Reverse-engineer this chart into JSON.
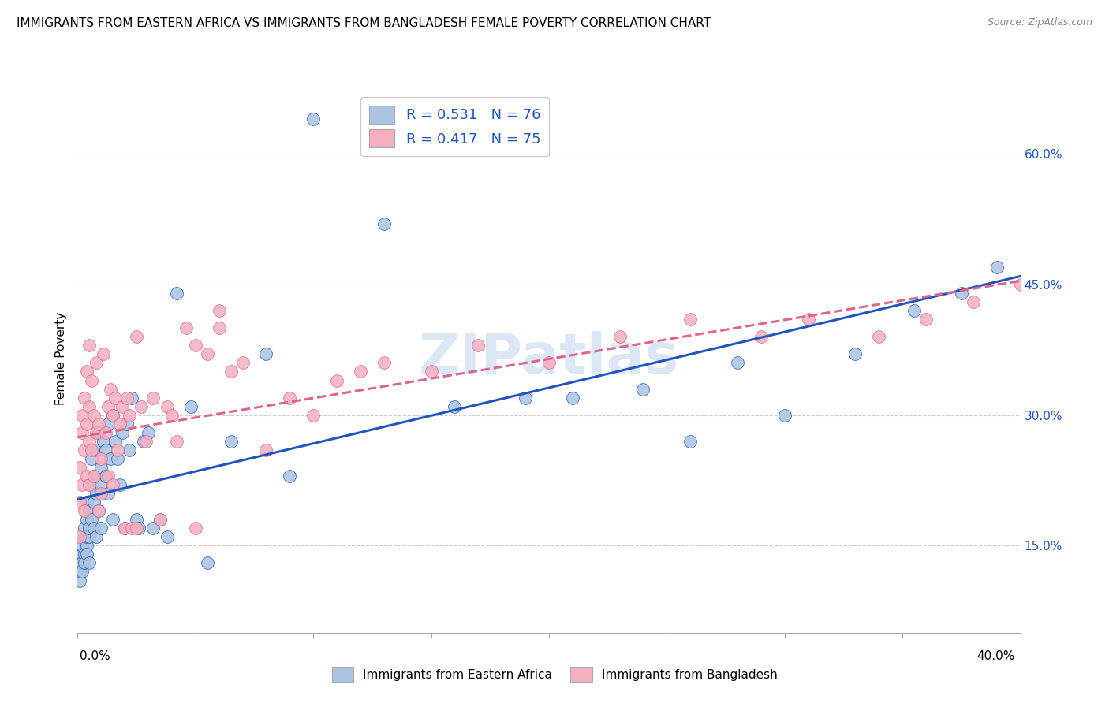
{
  "title": "IMMIGRANTS FROM EASTERN AFRICA VS IMMIGRANTS FROM BANGLADESH FEMALE POVERTY CORRELATION CHART",
  "source": "Source: ZipAtlas.com",
  "ylabel": "Female Poverty",
  "right_yticks": [
    0.15,
    0.3,
    0.45,
    0.6
  ],
  "right_ytick_labels": [
    "15.0%",
    "30.0%",
    "45.0%",
    "60.0%"
  ],
  "xmin": 0.0,
  "xmax": 0.4,
  "ymin": 0.05,
  "ymax": 0.68,
  "r_eastern": 0.531,
  "n_eastern": 76,
  "r_bangladesh": 0.417,
  "n_bangladesh": 75,
  "color_eastern": "#aac4e2",
  "color_bangladesh": "#f5afc0",
  "line_eastern": "#2255bb",
  "line_bangladesh": "#dd6688",
  "watermark": "ZIPatlas",
  "watermark_color": "#c5d8ef",
  "legend_text_color": "#2255bb",
  "ea_x": [
    0.001,
    0.001,
    0.001,
    0.002,
    0.002,
    0.002,
    0.002,
    0.003,
    0.003,
    0.003,
    0.003,
    0.004,
    0.004,
    0.004,
    0.004,
    0.004,
    0.005,
    0.005,
    0.005,
    0.005,
    0.006,
    0.006,
    0.006,
    0.007,
    0.007,
    0.007,
    0.008,
    0.008,
    0.008,
    0.009,
    0.009,
    0.01,
    0.01,
    0.01,
    0.011,
    0.012,
    0.012,
    0.013,
    0.013,
    0.014,
    0.015,
    0.015,
    0.016,
    0.017,
    0.018,
    0.019,
    0.02,
    0.021,
    0.022,
    0.023,
    0.025,
    0.026,
    0.028,
    0.03,
    0.032,
    0.035,
    0.038,
    0.042,
    0.048,
    0.055,
    0.065,
    0.08,
    0.1,
    0.13,
    0.16,
    0.21,
    0.26,
    0.3,
    0.33,
    0.355,
    0.375,
    0.39,
    0.09,
    0.19,
    0.24,
    0.28
  ],
  "ea_y": [
    0.11,
    0.13,
    0.12,
    0.14,
    0.13,
    0.12,
    0.15,
    0.17,
    0.14,
    0.16,
    0.13,
    0.18,
    0.15,
    0.16,
    0.2,
    0.14,
    0.19,
    0.16,
    0.17,
    0.13,
    0.22,
    0.18,
    0.25,
    0.23,
    0.2,
    0.17,
    0.21,
    0.26,
    0.16,
    0.28,
    0.19,
    0.24,
    0.22,
    0.17,
    0.27,
    0.26,
    0.23,
    0.29,
    0.21,
    0.25,
    0.3,
    0.18,
    0.27,
    0.25,
    0.22,
    0.28,
    0.17,
    0.29,
    0.26,
    0.32,
    0.18,
    0.17,
    0.27,
    0.28,
    0.17,
    0.18,
    0.16,
    0.44,
    0.31,
    0.13,
    0.27,
    0.37,
    0.64,
    0.52,
    0.31,
    0.32,
    0.27,
    0.3,
    0.37,
    0.42,
    0.44,
    0.47,
    0.23,
    0.32,
    0.33,
    0.36
  ],
  "bd_x": [
    0.001,
    0.001,
    0.001,
    0.002,
    0.002,
    0.002,
    0.003,
    0.003,
    0.003,
    0.004,
    0.004,
    0.004,
    0.005,
    0.005,
    0.005,
    0.006,
    0.006,
    0.007,
    0.007,
    0.008,
    0.008,
    0.009,
    0.009,
    0.01,
    0.01,
    0.011,
    0.012,
    0.013,
    0.013,
    0.014,
    0.015,
    0.015,
    0.016,
    0.017,
    0.018,
    0.019,
    0.02,
    0.021,
    0.022,
    0.023,
    0.025,
    0.027,
    0.029,
    0.032,
    0.035,
    0.038,
    0.042,
    0.046,
    0.005,
    0.05,
    0.055,
    0.06,
    0.065,
    0.025,
    0.07,
    0.08,
    0.09,
    0.11,
    0.13,
    0.15,
    0.17,
    0.2,
    0.23,
    0.26,
    0.29,
    0.31,
    0.34,
    0.36,
    0.38,
    0.4,
    0.04,
    0.05,
    0.06,
    0.1,
    0.12
  ],
  "bd_y": [
    0.24,
    0.2,
    0.16,
    0.28,
    0.22,
    0.3,
    0.26,
    0.19,
    0.32,
    0.29,
    0.23,
    0.35,
    0.31,
    0.27,
    0.22,
    0.34,
    0.26,
    0.3,
    0.23,
    0.28,
    0.36,
    0.19,
    0.29,
    0.21,
    0.25,
    0.37,
    0.28,
    0.23,
    0.31,
    0.33,
    0.22,
    0.3,
    0.32,
    0.26,
    0.29,
    0.31,
    0.17,
    0.32,
    0.3,
    0.17,
    0.17,
    0.31,
    0.27,
    0.32,
    0.18,
    0.31,
    0.27,
    0.4,
    0.38,
    0.17,
    0.37,
    0.42,
    0.35,
    0.39,
    0.36,
    0.26,
    0.32,
    0.34,
    0.36,
    0.35,
    0.38,
    0.36,
    0.39,
    0.41,
    0.39,
    0.41,
    0.39,
    0.41,
    0.43,
    0.45,
    0.3,
    0.38,
    0.4,
    0.3,
    0.35
  ]
}
